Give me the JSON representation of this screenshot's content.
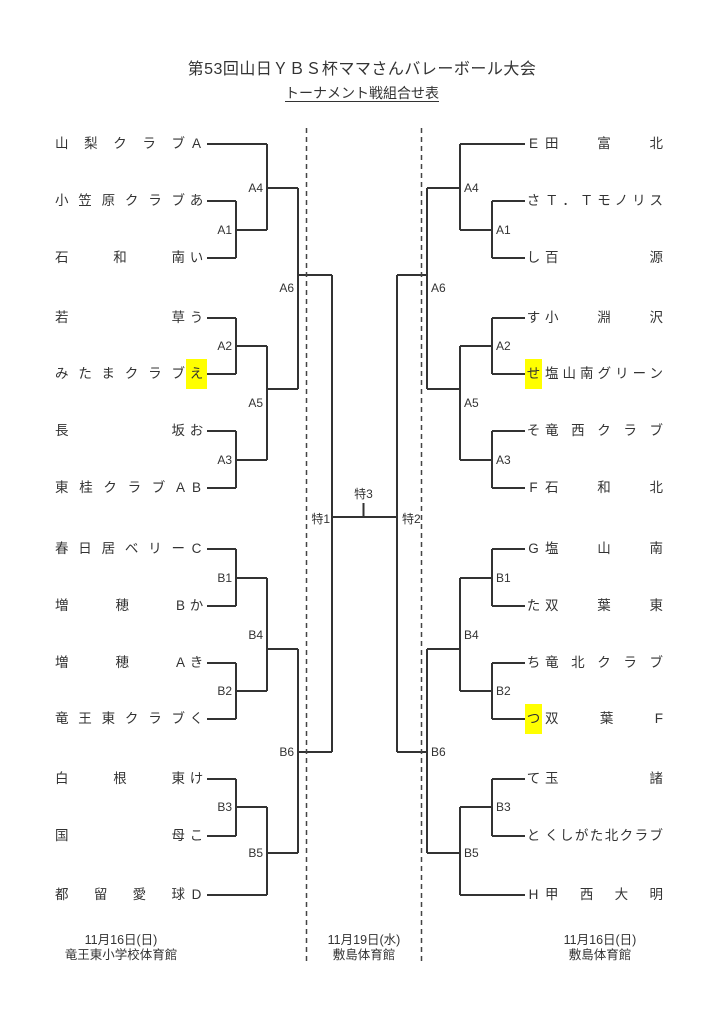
{
  "title": "第53回山日ＹＢＳ杯ママさんバレーボール大会",
  "subtitle": "トーナメント戦組合せ表",
  "colors": {
    "line": "#333333",
    "text": "#333333",
    "highlight": "#ffff00",
    "background": "#ffffff"
  },
  "left_bracket": {
    "teams": [
      {
        "name": "山梨クラブ",
        "marker": "A",
        "highlight": false
      },
      {
        "name": "小笠原クラブ",
        "marker": "あ",
        "highlight": false
      },
      {
        "name": "石和南",
        "marker": "い",
        "highlight": false
      },
      {
        "name": "若草",
        "marker": "う",
        "highlight": false
      },
      {
        "name": "みたまクラブ",
        "marker": "え",
        "highlight": true
      },
      {
        "name": "長坂",
        "marker": "お",
        "highlight": false
      },
      {
        "name": "東桂クラブA",
        "marker": "B",
        "highlight": false
      },
      {
        "name": "春日居ベリー",
        "marker": "C",
        "highlight": false
      },
      {
        "name": "増穂B",
        "marker": "か",
        "highlight": false
      },
      {
        "name": "増穂A",
        "marker": "き",
        "highlight": false
      },
      {
        "name": "竜王東クラブ",
        "marker": "く",
        "highlight": false
      },
      {
        "name": "白根東",
        "marker": "け",
        "highlight": false
      },
      {
        "name": "国母",
        "marker": "こ",
        "highlight": false
      },
      {
        "name": "都留愛球",
        "marker": "D",
        "highlight": false
      }
    ],
    "match_labels": [
      "A1",
      "A2",
      "A3",
      "A4",
      "A5",
      "A6",
      "B1",
      "B2",
      "B3",
      "B4",
      "B5",
      "B6"
    ]
  },
  "right_bracket": {
    "teams": [
      {
        "marker": "E",
        "name": "田富北",
        "highlight": false
      },
      {
        "marker": "さ",
        "name": "Ｔ．Ｔモノリス",
        "highlight": false
      },
      {
        "marker": "し",
        "name": "百源",
        "highlight": false
      },
      {
        "marker": "す",
        "name": "小淵沢",
        "highlight": false
      },
      {
        "marker": "せ",
        "name": "塩山南グリーン",
        "highlight": true
      },
      {
        "marker": "そ",
        "name": "竜西クラブ",
        "highlight": false
      },
      {
        "marker": "F",
        "name": "石和北",
        "highlight": false
      },
      {
        "marker": "G",
        "name": "塩山南",
        "highlight": false
      },
      {
        "marker": "た",
        "name": "双葉東",
        "highlight": false
      },
      {
        "marker": "ち",
        "name": "竜北クラブ",
        "highlight": false
      },
      {
        "marker": "つ",
        "name": "双葉F",
        "highlight": true
      },
      {
        "marker": "て",
        "name": "玉諸",
        "highlight": false
      },
      {
        "marker": "と",
        "name": "くしがた北クラブ",
        "highlight": false
      },
      {
        "marker": "H",
        "name": "甲西大明",
        "highlight": false
      }
    ],
    "match_labels": [
      "A1",
      "A2",
      "A3",
      "A4",
      "A5",
      "A6",
      "B1",
      "B2",
      "B3",
      "B4",
      "B5",
      "B6"
    ]
  },
  "finals": {
    "left_semi_label": "特1",
    "right_semi_label": "特2",
    "final_label": "特3"
  },
  "venues": [
    {
      "date": "11月16日(日)",
      "venue": "竜王東小学校体育館"
    },
    {
      "date": "11月19日(水)",
      "venue": "敷島体育館"
    },
    {
      "date": "11月16日(日)",
      "venue": "敷島体育館"
    }
  ]
}
